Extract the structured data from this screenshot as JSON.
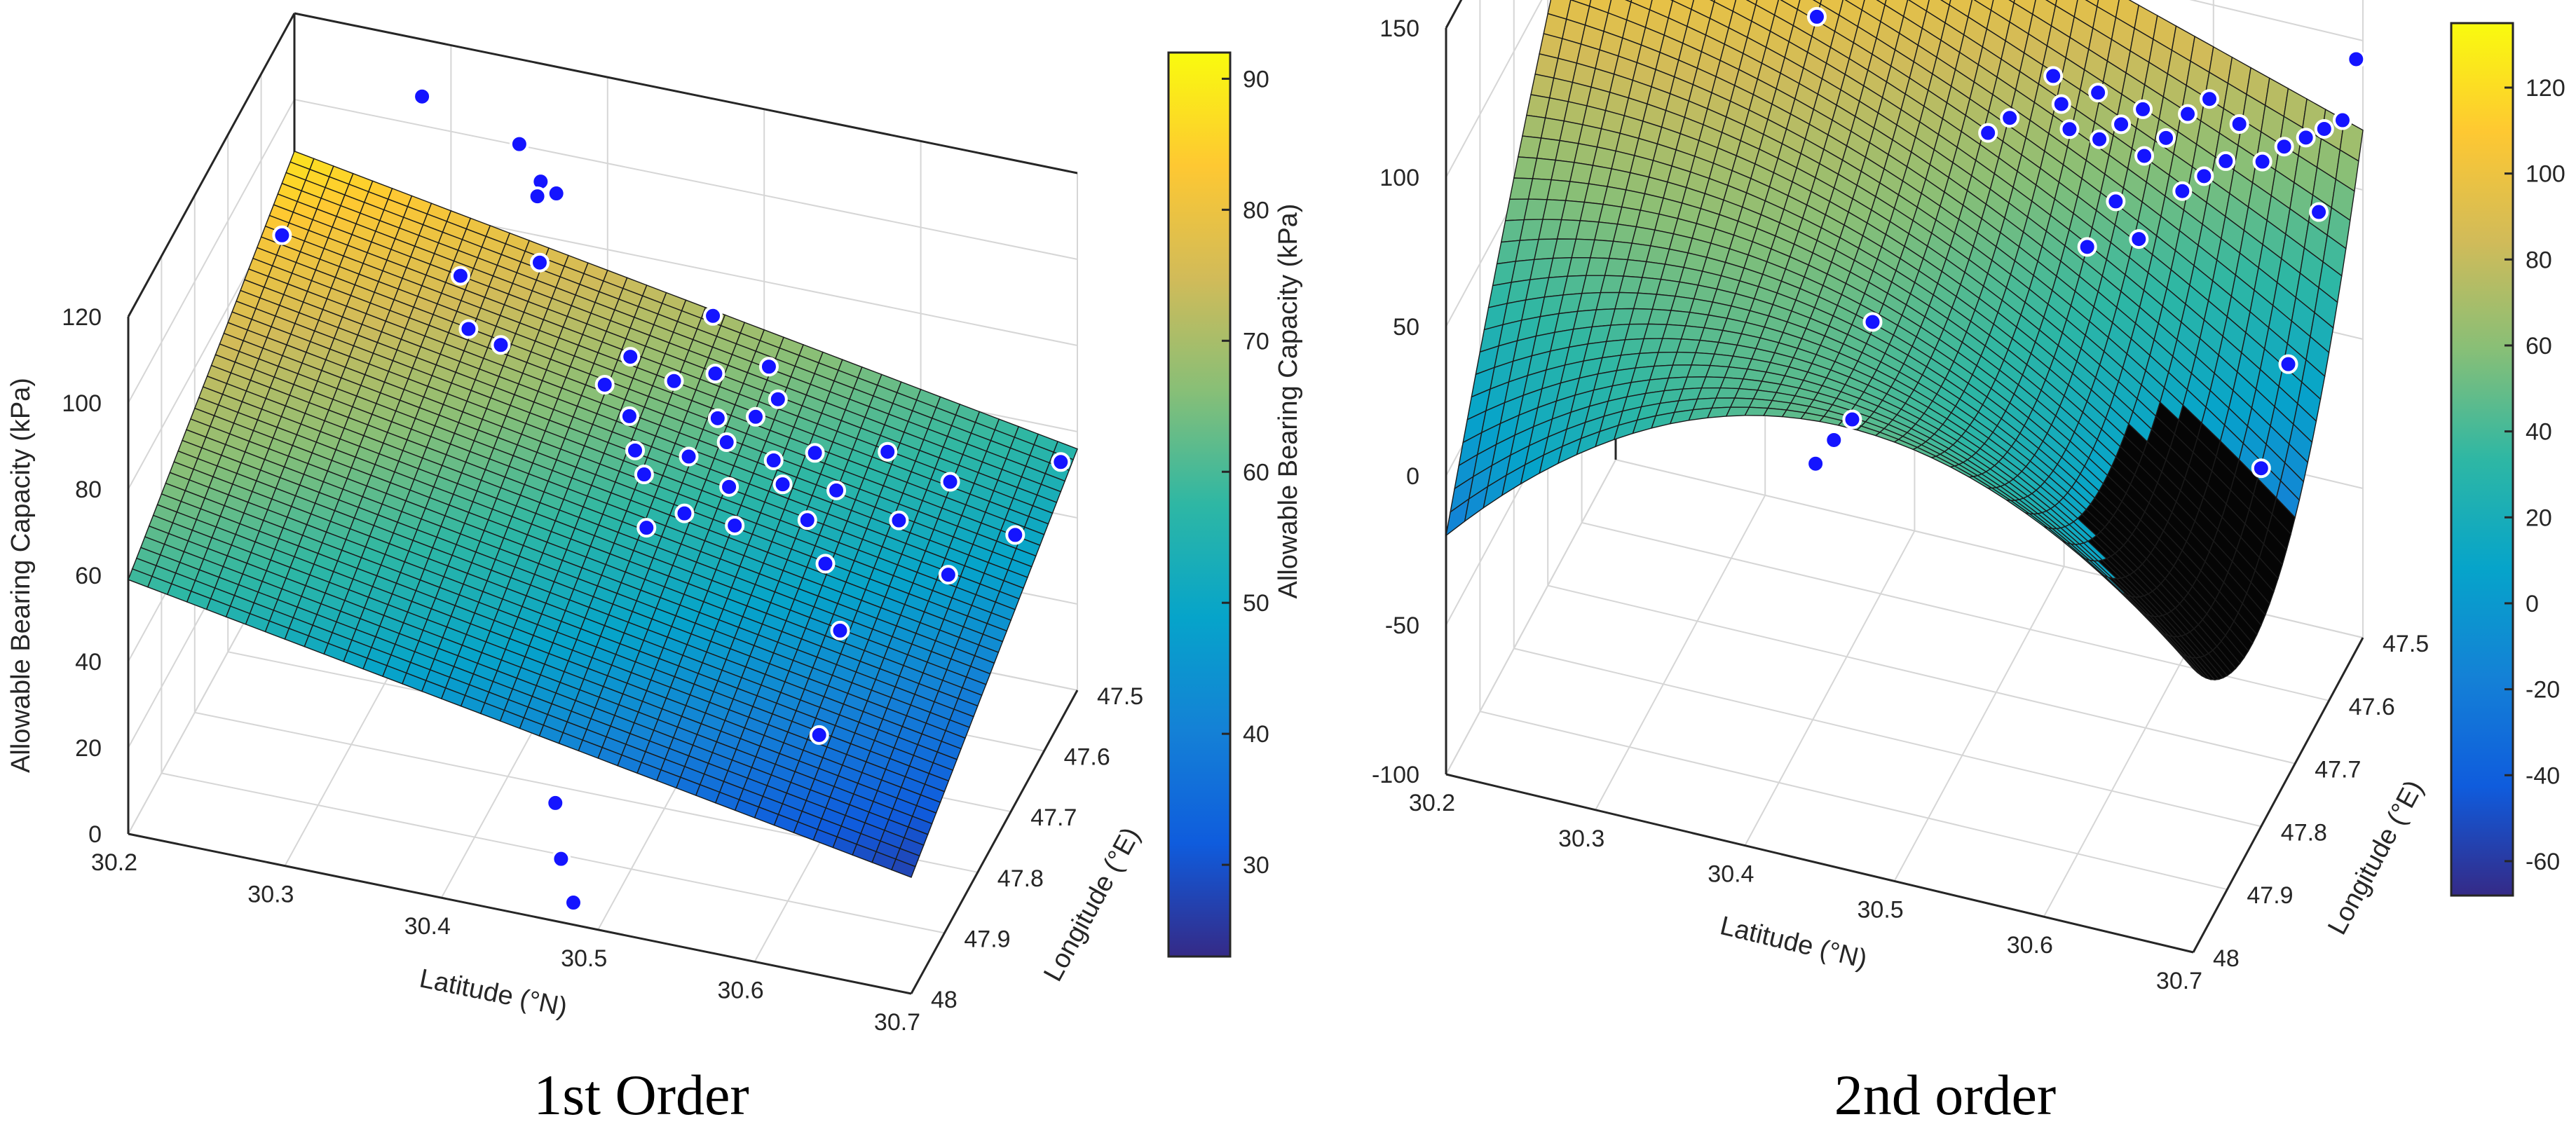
{
  "chart_data": [
    {
      "type": "surface3d",
      "title": "1st Order",
      "xlabel": "Latitude (°N)",
      "ylabel": "Longitude (°E)",
      "zlabel": "Allowable Bearing Capacity (kPa)",
      "xlim": [
        30.2,
        30.7
      ],
      "ylim": [
        47.5,
        48
      ],
      "zlim": [
        0,
        120
      ],
      "xticks": [
        "30.2",
        "30.3",
        "30.4",
        "30.5",
        "30.6",
        "30.7"
      ],
      "yticks": [
        "47.5",
        "47.6",
        "47.7",
        "47.8",
        "47.9",
        "48"
      ],
      "zticks": [
        "0",
        "20",
        "40",
        "60",
        "80",
        "100",
        "120"
      ],
      "surface": {
        "model": "linear",
        "corners": {
          "lat30.2_lon48": 59,
          "lat30.2_lon47.5": 88,
          "lat30.7_lon47.5": 56,
          "lat30.7_lon48": 27
        }
      },
      "colorbar": {
        "range": [
          23,
          92
        ],
        "ticks": [
          "30",
          "40",
          "50",
          "60",
          "70",
          "80",
          "90"
        ]
      },
      "points": [
        {
          "lat": 30.29,
          "lon": 47.54,
          "z": 113
        },
        {
          "lat": 30.26,
          "lon": 47.82,
          "z": 118
        },
        {
          "lat": 30.34,
          "lon": 47.66,
          "z": 92
        },
        {
          "lat": 30.36,
          "lon": 47.73,
          "z": 91
        },
        {
          "lat": 30.35,
          "lon": 47.53,
          "z": 105
        },
        {
          "lat": 30.37,
          "lon": 47.56,
          "z": 102
        },
        {
          "lat": 30.38,
          "lon": 47.56,
          "z": 100
        },
        {
          "lat": 30.37,
          "lon": 47.57,
          "z": 100
        },
        {
          "lat": 30.38,
          "lon": 47.61,
          "z": 91
        },
        {
          "lat": 30.37,
          "lon": 47.68,
          "z": 81
        },
        {
          "lat": 30.43,
          "lon": 47.65,
          "z": 72
        },
        {
          "lat": 30.44,
          "lon": 47.62,
          "z": 75
        },
        {
          "lat": 30.48,
          "lon": 47.56,
          "z": 79
        },
        {
          "lat": 30.47,
          "lon": 47.63,
          "z": 73
        },
        {
          "lat": 30.45,
          "lon": 47.67,
          "z": 69
        },
        {
          "lat": 30.46,
          "lon": 47.7,
          "z": 66
        },
        {
          "lat": 30.47,
          "lon": 47.72,
          "z": 64
        },
        {
          "lat": 30.49,
          "lon": 47.6,
          "z": 72
        },
        {
          "lat": 30.5,
          "lon": 47.64,
          "z": 68
        },
        {
          "lat": 30.51,
          "lon": 47.66,
          "z": 66
        },
        {
          "lat": 30.49,
          "lon": 47.68,
          "z": 64
        },
        {
          "lat": 30.52,
          "lon": 47.62,
          "z": 67
        },
        {
          "lat": 30.53,
          "lon": 47.6,
          "z": 69
        },
        {
          "lat": 30.5,
          "lon": 47.74,
          "z": 60
        },
        {
          "lat": 30.48,
          "lon": 47.76,
          "z": 58
        },
        {
          "lat": 30.52,
          "lon": 47.7,
          "z": 62
        },
        {
          "lat": 30.54,
          "lon": 47.66,
          "z": 64
        },
        {
          "lat": 30.55,
          "lon": 47.68,
          "z": 62
        },
        {
          "lat": 30.56,
          "lon": 47.63,
          "z": 63
        },
        {
          "lat": 30.53,
          "lon": 47.73,
          "z": 58
        },
        {
          "lat": 30.57,
          "lon": 47.7,
          "z": 58
        },
        {
          "lat": 30.58,
          "lon": 47.66,
          "z": 60
        },
        {
          "lat": 30.6,
          "lon": 47.6,
          "z": 62
        },
        {
          "lat": 30.59,
          "lon": 47.74,
          "z": 55
        },
        {
          "lat": 30.62,
          "lon": 47.66,
          "z": 56
        },
        {
          "lat": 30.64,
          "lon": 47.6,
          "z": 58
        },
        {
          "lat": 30.61,
          "lon": 47.79,
          "z": 48
        },
        {
          "lat": 30.66,
          "lon": 47.7,
          "z": 52
        },
        {
          "lat": 30.69,
          "lon": 47.64,
          "z": 55
        },
        {
          "lat": 30.7,
          "lon": 47.55,
          "z": 60
        },
        {
          "lat": 30.62,
          "lon": 47.9,
          "z": 40
        },
        {
          "lat": 30.52,
          "lon": 47.58,
          "z": 73
        },
        {
          "lat": 30.46,
          "lon": 47.94,
          "z": 18
        },
        {
          "lat": 30.47,
          "lon": 47.97,
          "z": 10
        },
        {
          "lat": 30.48,
          "lon": 47.98,
          "z": 2
        }
      ]
    },
    {
      "type": "surface3d",
      "title": "2nd order",
      "xlabel": "Latitude (°N)",
      "ylabel": "Longitude (°E)",
      "zlabel": "Allowable Bearing Capacity (kPa)",
      "xlim": [
        30.2,
        30.7
      ],
      "ylim": [
        47.5,
        48
      ],
      "zlim": [
        -100,
        150
      ],
      "xticks": [
        "30.2",
        "30.3",
        "30.4",
        "30.5",
        "30.6",
        "30.7"
      ],
      "yticks": [
        "47.5",
        "47.6",
        "47.7",
        "47.8",
        "47.9",
        "48"
      ],
      "zticks": [
        "-100",
        "-50",
        "0",
        "50",
        "100",
        "150"
      ],
      "surface": {
        "model": "quadratic",
        "corners": {
          "lat30.2_lon48": -20,
          "lat30.2_lon47.5": 150,
          "lat30.7_lon47.5": 70,
          "lat30.7_lon48": -5
        }
      },
      "colorbar": {
        "range": [
          -68,
          135
        ],
        "ticks": [
          "-60",
          "-40",
          "-20",
          "0",
          "20",
          "40",
          "60",
          "80",
          "100",
          "120"
        ]
      },
      "points": [
        {
          "lat": 30.28,
          "lon": 47.55,
          "z": 150
        },
        {
          "lat": 30.3,
          "lon": 47.6,
          "z": 135
        },
        {
          "lat": 30.36,
          "lon": 47.62,
          "z": 130
        },
        {
          "lat": 30.43,
          "lon": 47.57,
          "z": 130
        },
        {
          "lat": 30.38,
          "lon": 47.7,
          "z": 112
        },
        {
          "lat": 30.44,
          "lon": 47.62,
          "z": 128
        },
        {
          "lat": 30.45,
          "lon": 47.6,
          "z": 131
        },
        {
          "lat": 30.46,
          "lon": 47.59,
          "z": 132
        },
        {
          "lat": 30.47,
          "lon": 47.62,
          "z": 125
        },
        {
          "lat": 30.49,
          "lon": 47.68,
          "z": 82
        },
        {
          "lat": 30.5,
          "lon": 47.66,
          "z": 84
        },
        {
          "lat": 30.52,
          "lon": 47.62,
          "z": 92
        },
        {
          "lat": 30.53,
          "lon": 47.64,
          "z": 88
        },
        {
          "lat": 30.54,
          "lon": 47.66,
          "z": 85
        },
        {
          "lat": 30.55,
          "lon": 47.62,
          "z": 90
        },
        {
          "lat": 30.56,
          "lon": 47.66,
          "z": 84
        },
        {
          "lat": 30.57,
          "lon": 47.64,
          "z": 86
        },
        {
          "lat": 30.58,
          "lon": 47.62,
          "z": 88
        },
        {
          "lat": 30.59,
          "lon": 47.66,
          "z": 82
        },
        {
          "lat": 30.6,
          "lon": 47.64,
          "z": 85
        },
        {
          "lat": 30.61,
          "lon": 47.62,
          "z": 90
        },
        {
          "lat": 30.62,
          "lon": 47.6,
          "z": 92
        },
        {
          "lat": 30.62,
          "lon": 47.68,
          "z": 78
        },
        {
          "lat": 30.63,
          "lon": 47.66,
          "z": 80
        },
        {
          "lat": 30.64,
          "lon": 47.64,
          "z": 82
        },
        {
          "lat": 30.64,
          "lon": 47.6,
          "z": 86
        },
        {
          "lat": 30.66,
          "lon": 47.62,
          "z": 80
        },
        {
          "lat": 30.67,
          "lon": 47.6,
          "z": 82
        },
        {
          "lat": 30.68,
          "lon": 47.58,
          "z": 82
        },
        {
          "lat": 30.69,
          "lon": 47.57,
          "z": 84
        },
        {
          "lat": 30.7,
          "lon": 47.56,
          "z": 86
        },
        {
          "lat": 30.7,
          "lon": 47.52,
          "z": 98
        },
        {
          "lat": 30.58,
          "lon": 47.7,
          "z": 74
        },
        {
          "lat": 30.6,
          "lon": 47.72,
          "z": 68
        },
        {
          "lat": 30.57,
          "lon": 47.74,
          "z": 66
        },
        {
          "lat": 30.44,
          "lon": 47.8,
          "z": 38
        },
        {
          "lat": 30.42,
          "lon": 47.88,
          "z": 5
        },
        {
          "lat": 30.43,
          "lon": 47.87,
          "z": 12
        },
        {
          "lat": 30.44,
          "lon": 47.86,
          "z": 18
        },
        {
          "lat": 30.7,
          "lon": 47.63,
          "z": 70
        },
        {
          "lat": 30.7,
          "lon": 47.72,
          "z": 38
        },
        {
          "lat": 30.7,
          "lon": 47.8,
          "z": 20
        }
      ]
    }
  ]
}
